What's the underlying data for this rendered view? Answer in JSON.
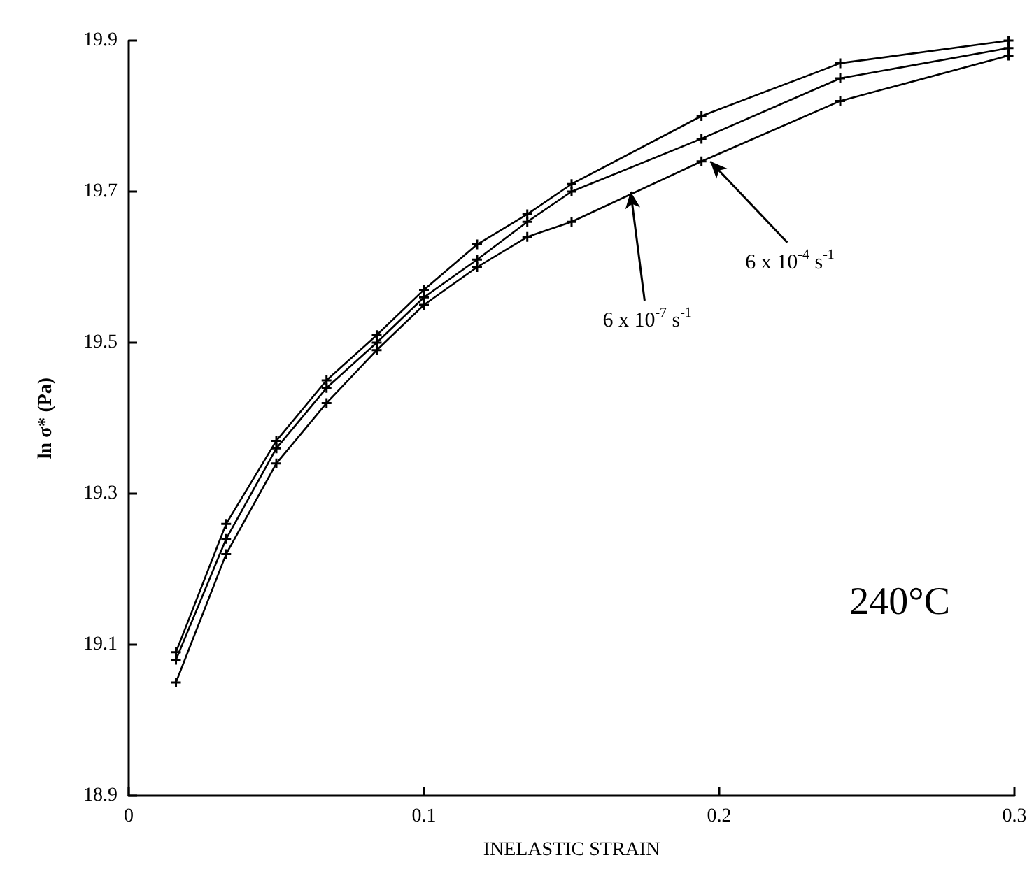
{
  "chart_data": {
    "type": "line",
    "xlabel": "INELASTIC STRAIN",
    "ylabel": "ln σ* (Pa)",
    "xlim": [
      0,
      0.3
    ],
    "xticks": [
      0,
      0.1,
      0.2,
      0.3
    ],
    "ylim": [
      18.9,
      19.9
    ],
    "yticks": [
      18.9,
      19.1,
      19.3,
      19.5,
      19.7,
      19.9
    ],
    "marker": "cross",
    "line_style": "solid",
    "grid": false,
    "series": [
      {
        "color": "#000000",
        "x": [
          0.016,
          0.033,
          0.05,
          0.067,
          0.084,
          0.1,
          0.118,
          0.135,
          0.15,
          0.194,
          0.241,
          0.298
        ],
        "values": [
          19.09,
          19.26,
          19.37,
          19.45,
          19.51,
          19.57,
          19.63,
          19.67,
          19.71,
          19.8,
          19.87,
          19.9
        ]
      },
      {
        "color": "#000000",
        "x": [
          0.016,
          0.033,
          0.05,
          0.067,
          0.084,
          0.1,
          0.118,
          0.135,
          0.15,
          0.194,
          0.241,
          0.298
        ],
        "values": [
          19.08,
          19.24,
          19.36,
          19.44,
          19.5,
          19.56,
          19.61,
          19.66,
          19.7,
          19.77,
          19.85,
          19.89
        ]
      },
      {
        "color": "#000000",
        "x": [
          0.016,
          0.033,
          0.05,
          0.067,
          0.084,
          0.1,
          0.118,
          0.135,
          0.15,
          0.194,
          0.241,
          0.298
        ],
        "values": [
          19.05,
          19.22,
          19.34,
          19.42,
          19.49,
          19.55,
          19.6,
          19.64,
          19.66,
          19.74,
          19.82,
          19.88
        ]
      }
    ],
    "annotations": [
      {
        "text": "6 x 10$^{-7}$ s$^{-1}$",
        "x": 0.17,
        "y": 19.7
      },
      {
        "text": "6 x 10$^{-4}$ s$^{-1}$",
        "x": 0.197,
        "y": 19.74
      },
      "240°C"
    ]
  }
}
